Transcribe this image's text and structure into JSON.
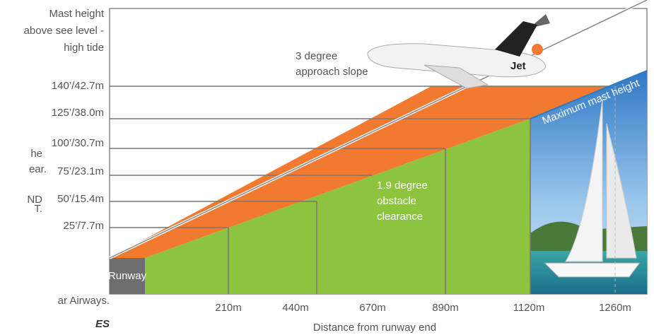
{
  "left_text": [
    "he",
    "ear.",
    "ND",
    "T.",
    "ar Airways.",
    "ES"
  ],
  "y_axis_title": [
    "Mast height",
    "above see level -",
    "high tide"
  ],
  "y_labels": [
    "140’/42.7m",
    "125’/38.0m",
    "100’/30.7m",
    "75’/23.1m",
    "50’/15.4m",
    "25’/7.7m"
  ],
  "x_labels": [
    "210m",
    "440m",
    "670m",
    "890m",
    "1120m",
    "1260m"
  ],
  "x_axis_title": "Distance from runway end",
  "approach": [
    "3 degree",
    "approach slope"
  ],
  "clearance": [
    "1.9 degree",
    "obstacle",
    "clearance"
  ],
  "mast": "Maximum mast height",
  "runway": "Runway"
}
